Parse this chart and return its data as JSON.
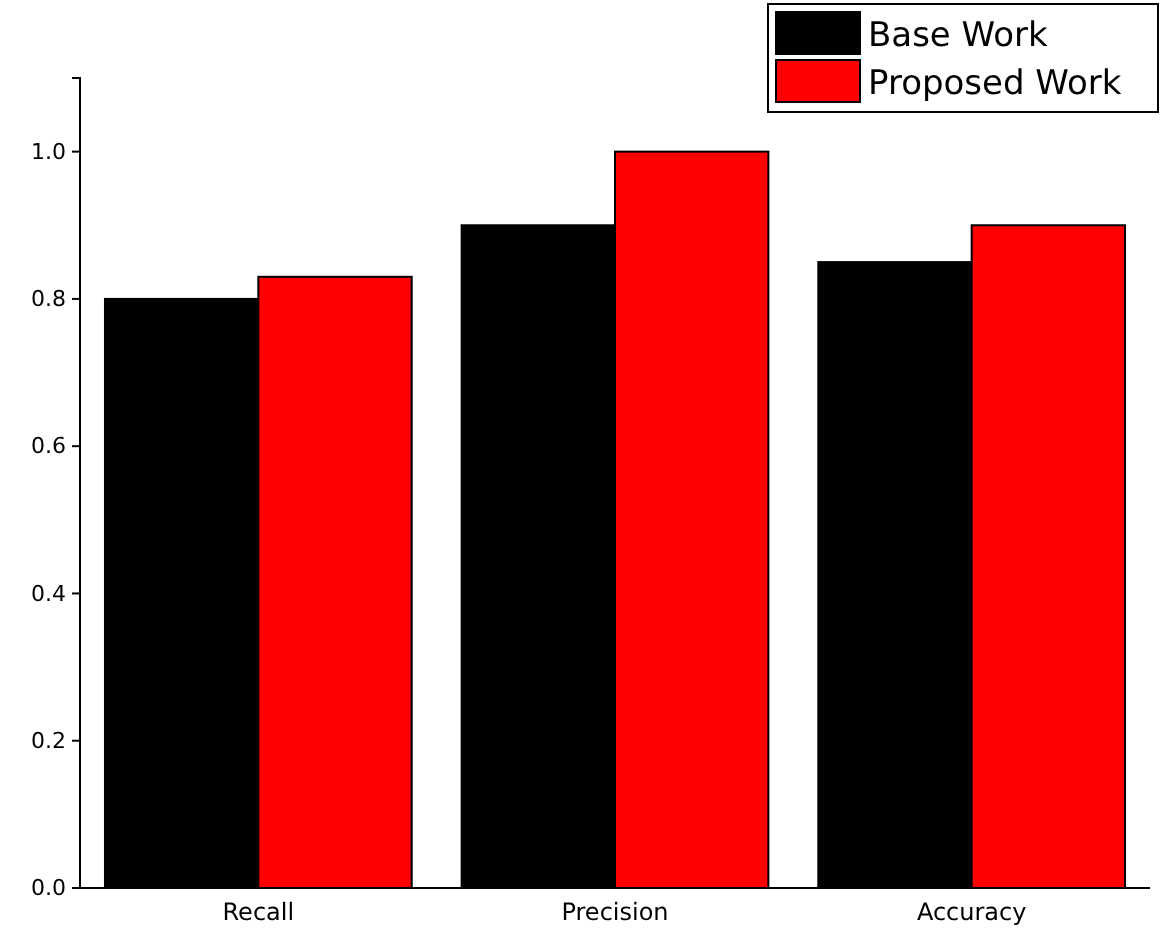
{
  "chart_data": {
    "type": "bar",
    "categories": [
      "Recall",
      "Precision",
      "Accuracy"
    ],
    "series": [
      {
        "name": "Base Work",
        "color": "#000000",
        "values": [
          0.8,
          0.9,
          0.85
        ]
      },
      {
        "name": "Proposed Work",
        "color": "#ff0000",
        "values": [
          0.83,
          1.0,
          0.9
        ]
      }
    ],
    "ylim": [
      0,
      1.1
    ],
    "yticks": [
      {
        "value": 0,
        "label": "0.0"
      },
      {
        "value": 0.2,
        "label": "0.2"
      },
      {
        "value": 0.4,
        "label": "0.4"
      },
      {
        "value": 0.6,
        "label": "0.6"
      },
      {
        "value": 0.8,
        "label": "0.8"
      },
      {
        "value": 1,
        "label": "1.0"
      }
    ],
    "grid": false,
    "legend": "top right"
  }
}
